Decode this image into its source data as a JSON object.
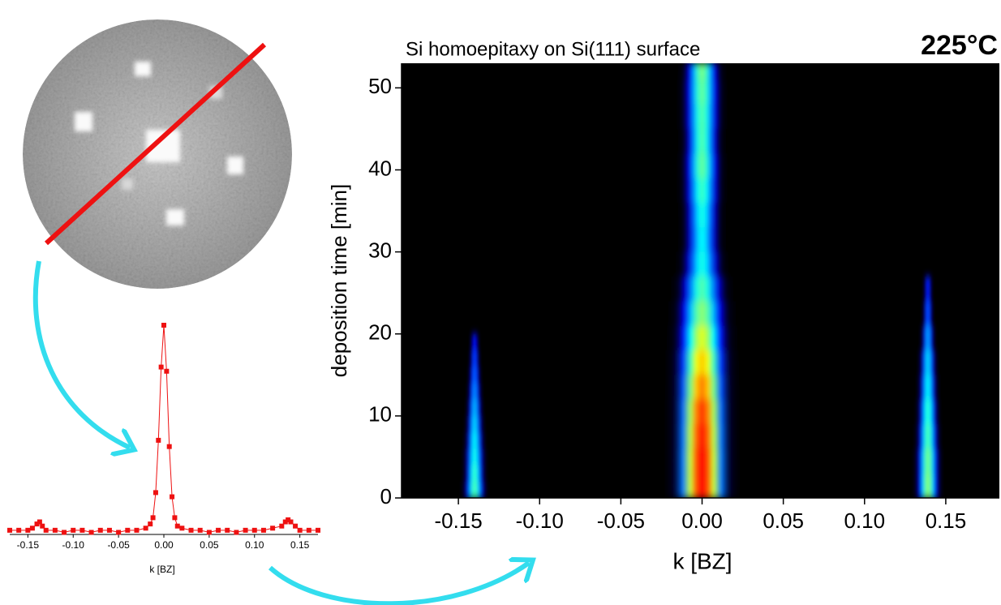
{
  "chart_data": [
    {
      "type": "heatmap",
      "title": "Si homoepitaxy on Si(111) surface",
      "annotation": "225°C",
      "x_label": "k [BZ]",
      "y_label": "deposition time [min]",
      "xlim": [
        -0.185,
        0.183
      ],
      "ylim": [
        0,
        53
      ],
      "xticks": [
        -0.15,
        {
          "value": -0.1,
          "label": "-0.10"
        },
        -0.05,
        {
          "value": 0,
          "label": "0.00"
        },
        0.05,
        {
          "value": 0.1,
          "label": "0.10"
        },
        0.15
      ],
      "yticks": [
        0,
        10,
        20,
        30,
        40,
        50
      ],
      "colormap": [
        "#000000",
        "#00007f",
        "#0000ff",
        "#0080ff",
        "#00ffff",
        "#80ff80",
        "#ffff00",
        "#ff8000",
        "#ff0000"
      ],
      "streaks": [
        {
          "k": 0,
          "t_bins": [
            0,
            3,
            6,
            9,
            12,
            15,
            18,
            21,
            24,
            27,
            30,
            33,
            36,
            39,
            42,
            45,
            48,
            51,
            53
          ],
          "widths": [
            0.03,
            0.03,
            0.03,
            0.03,
            0.03,
            0.03,
            0.029,
            0.028,
            0.026,
            0.022,
            0.02,
            0.02,
            0.021,
            0.021,
            0.02,
            0.021,
            0.021,
            0.02
          ],
          "peaks": [
            1.0,
            1.0,
            0.98,
            0.95,
            0.88,
            0.8,
            0.72,
            0.64,
            0.58,
            0.52,
            0.5,
            0.52,
            0.56,
            0.6,
            0.58,
            0.58,
            0.6,
            0.62
          ]
        },
        {
          "k": -0.14,
          "t_bins": [
            0,
            2,
            4,
            6,
            8,
            10,
            12,
            14,
            16,
            18,
            20
          ],
          "widths": [
            0.012,
            0.011,
            0.011,
            0.01,
            0.009,
            0.008,
            0.007,
            0.006,
            0.005,
            0.004
          ],
          "peaks": [
            0.58,
            0.56,
            0.52,
            0.5,
            0.47,
            0.44,
            0.4,
            0.36,
            0.33,
            0.28
          ]
        },
        {
          "k": 0.139,
          "t_bins": [
            0,
            3,
            6,
            9,
            12,
            15,
            18,
            21,
            24,
            27
          ],
          "widths": [
            0.013,
            0.013,
            0.012,
            0.011,
            0.01,
            0.009,
            0.007,
            0.005,
            0.004
          ],
          "peaks": [
            0.64,
            0.62,
            0.58,
            0.55,
            0.5,
            0.47,
            0.42,
            0.35,
            0.3
          ]
        }
      ]
    },
    {
      "type": "line",
      "x_label": "k [BZ]",
      "color": "#ee1111",
      "xlim": [
        -0.17,
        0.17
      ],
      "ylim": [
        0,
        1
      ],
      "xticks": [
        -0.15,
        {
          "value": -0.1,
          "label": "-0.10"
        },
        -0.05,
        {
          "value": 0,
          "label": "0.00"
        },
        0.05,
        {
          "value": 0.1,
          "label": "0.10"
        },
        0.15
      ],
      "x": [
        -0.17,
        -0.16,
        -0.15,
        -0.145,
        -0.14,
        -0.137,
        -0.134,
        -0.13,
        -0.12,
        -0.11,
        -0.1,
        -0.09,
        -0.08,
        -0.07,
        -0.06,
        -0.05,
        -0.04,
        -0.03,
        -0.02,
        -0.015,
        -0.012,
        -0.009,
        -0.006,
        -0.003,
        0,
        0.003,
        0.006,
        0.009,
        0.012,
        0.015,
        0.02,
        0.03,
        0.04,
        0.05,
        0.06,
        0.07,
        0.08,
        0.09,
        0.1,
        0.11,
        0.12,
        0.13,
        0.134,
        0.137,
        0.14,
        0.145,
        0.15,
        0.16,
        0.17
      ],
      "values": [
        0.02,
        0.02,
        0.02,
        0.03,
        0.05,
        0.06,
        0.04,
        0.02,
        0.02,
        0.01,
        0.02,
        0.02,
        0.01,
        0.02,
        0.02,
        0.01,
        0.02,
        0.02,
        0.03,
        0.05,
        0.08,
        0.2,
        0.45,
        0.8,
        1.0,
        0.78,
        0.42,
        0.18,
        0.08,
        0.04,
        0.03,
        0.02,
        0.02,
        0.01,
        0.02,
        0.02,
        0.01,
        0.02,
        0.02,
        0.02,
        0.03,
        0.04,
        0.06,
        0.07,
        0.06,
        0.04,
        0.02,
        0.02,
        0.02
      ]
    }
  ]
}
